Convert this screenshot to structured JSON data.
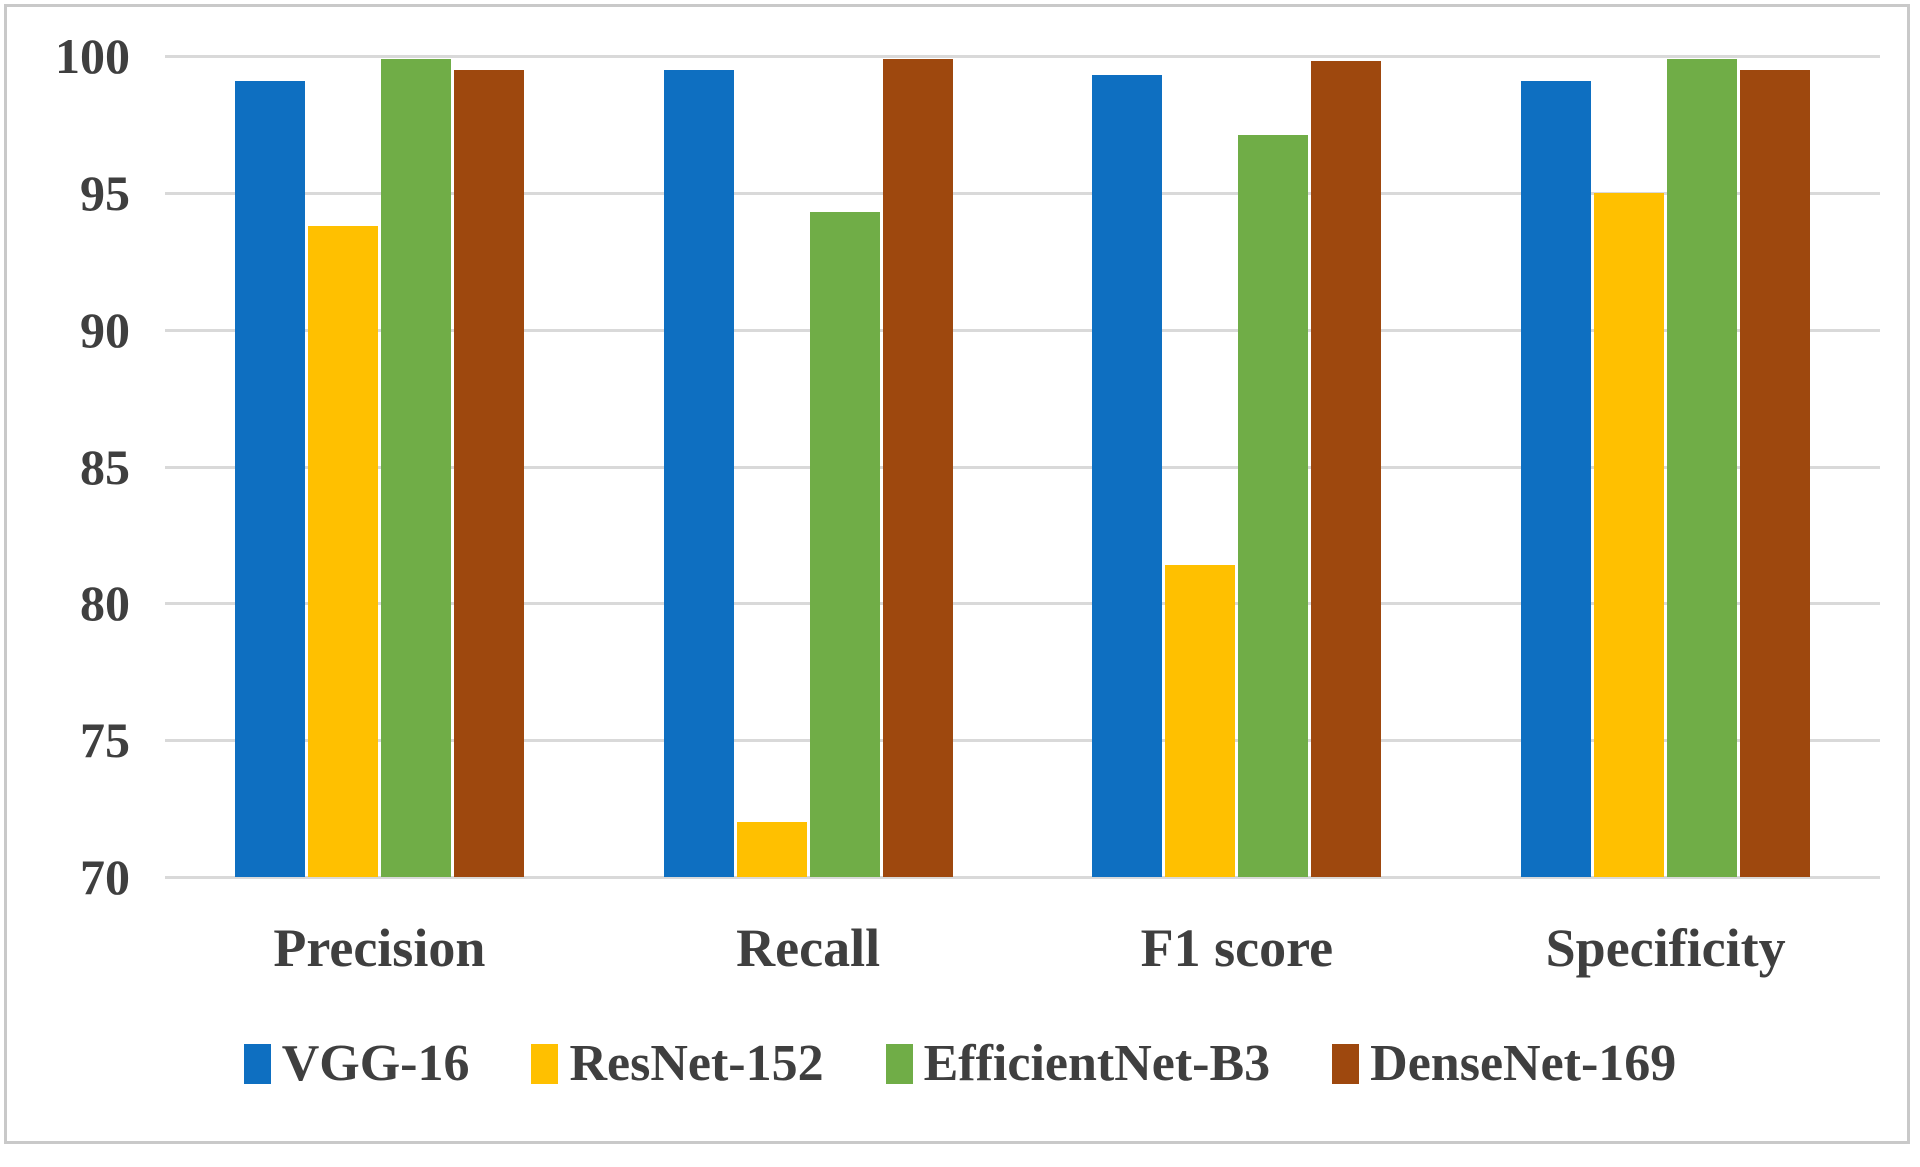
{
  "chart_data": {
    "type": "bar",
    "title": "",
    "xlabel": "",
    "ylabel": "",
    "categories": [
      "Precision",
      "Recall",
      "F1 score",
      "Specificity"
    ],
    "series": [
      {
        "name": "VGG-16",
        "color": "#0E6FC1",
        "values": [
          99.1,
          99.5,
          99.3,
          99.1
        ]
      },
      {
        "name": "ResNet-152",
        "color": "#FFC000",
        "values": [
          93.8,
          72.0,
          81.4,
          95.0
        ]
      },
      {
        "name": "EfficientNet-B3",
        "color": "#70AD47",
        "values": [
          99.9,
          94.3,
          97.1,
          99.9
        ]
      },
      {
        "name": "DenseNet-169",
        "color": "#9E480E",
        "values": [
          99.5,
          99.9,
          99.8,
          99.5
        ]
      }
    ],
    "ylim": [
      70,
      100
    ],
    "ytick_step": 5,
    "yticks": [
      "100",
      "95",
      "90",
      "85",
      "80",
      "75",
      "70"
    ],
    "grid": "horizontal-only",
    "legend_position": "bottom"
  },
  "styles": {
    "background": "#FFFFFF",
    "border_color": "#C9C9C9",
    "gridline_color": "#D9D9D9",
    "text_color": "#3F3F3F"
  }
}
